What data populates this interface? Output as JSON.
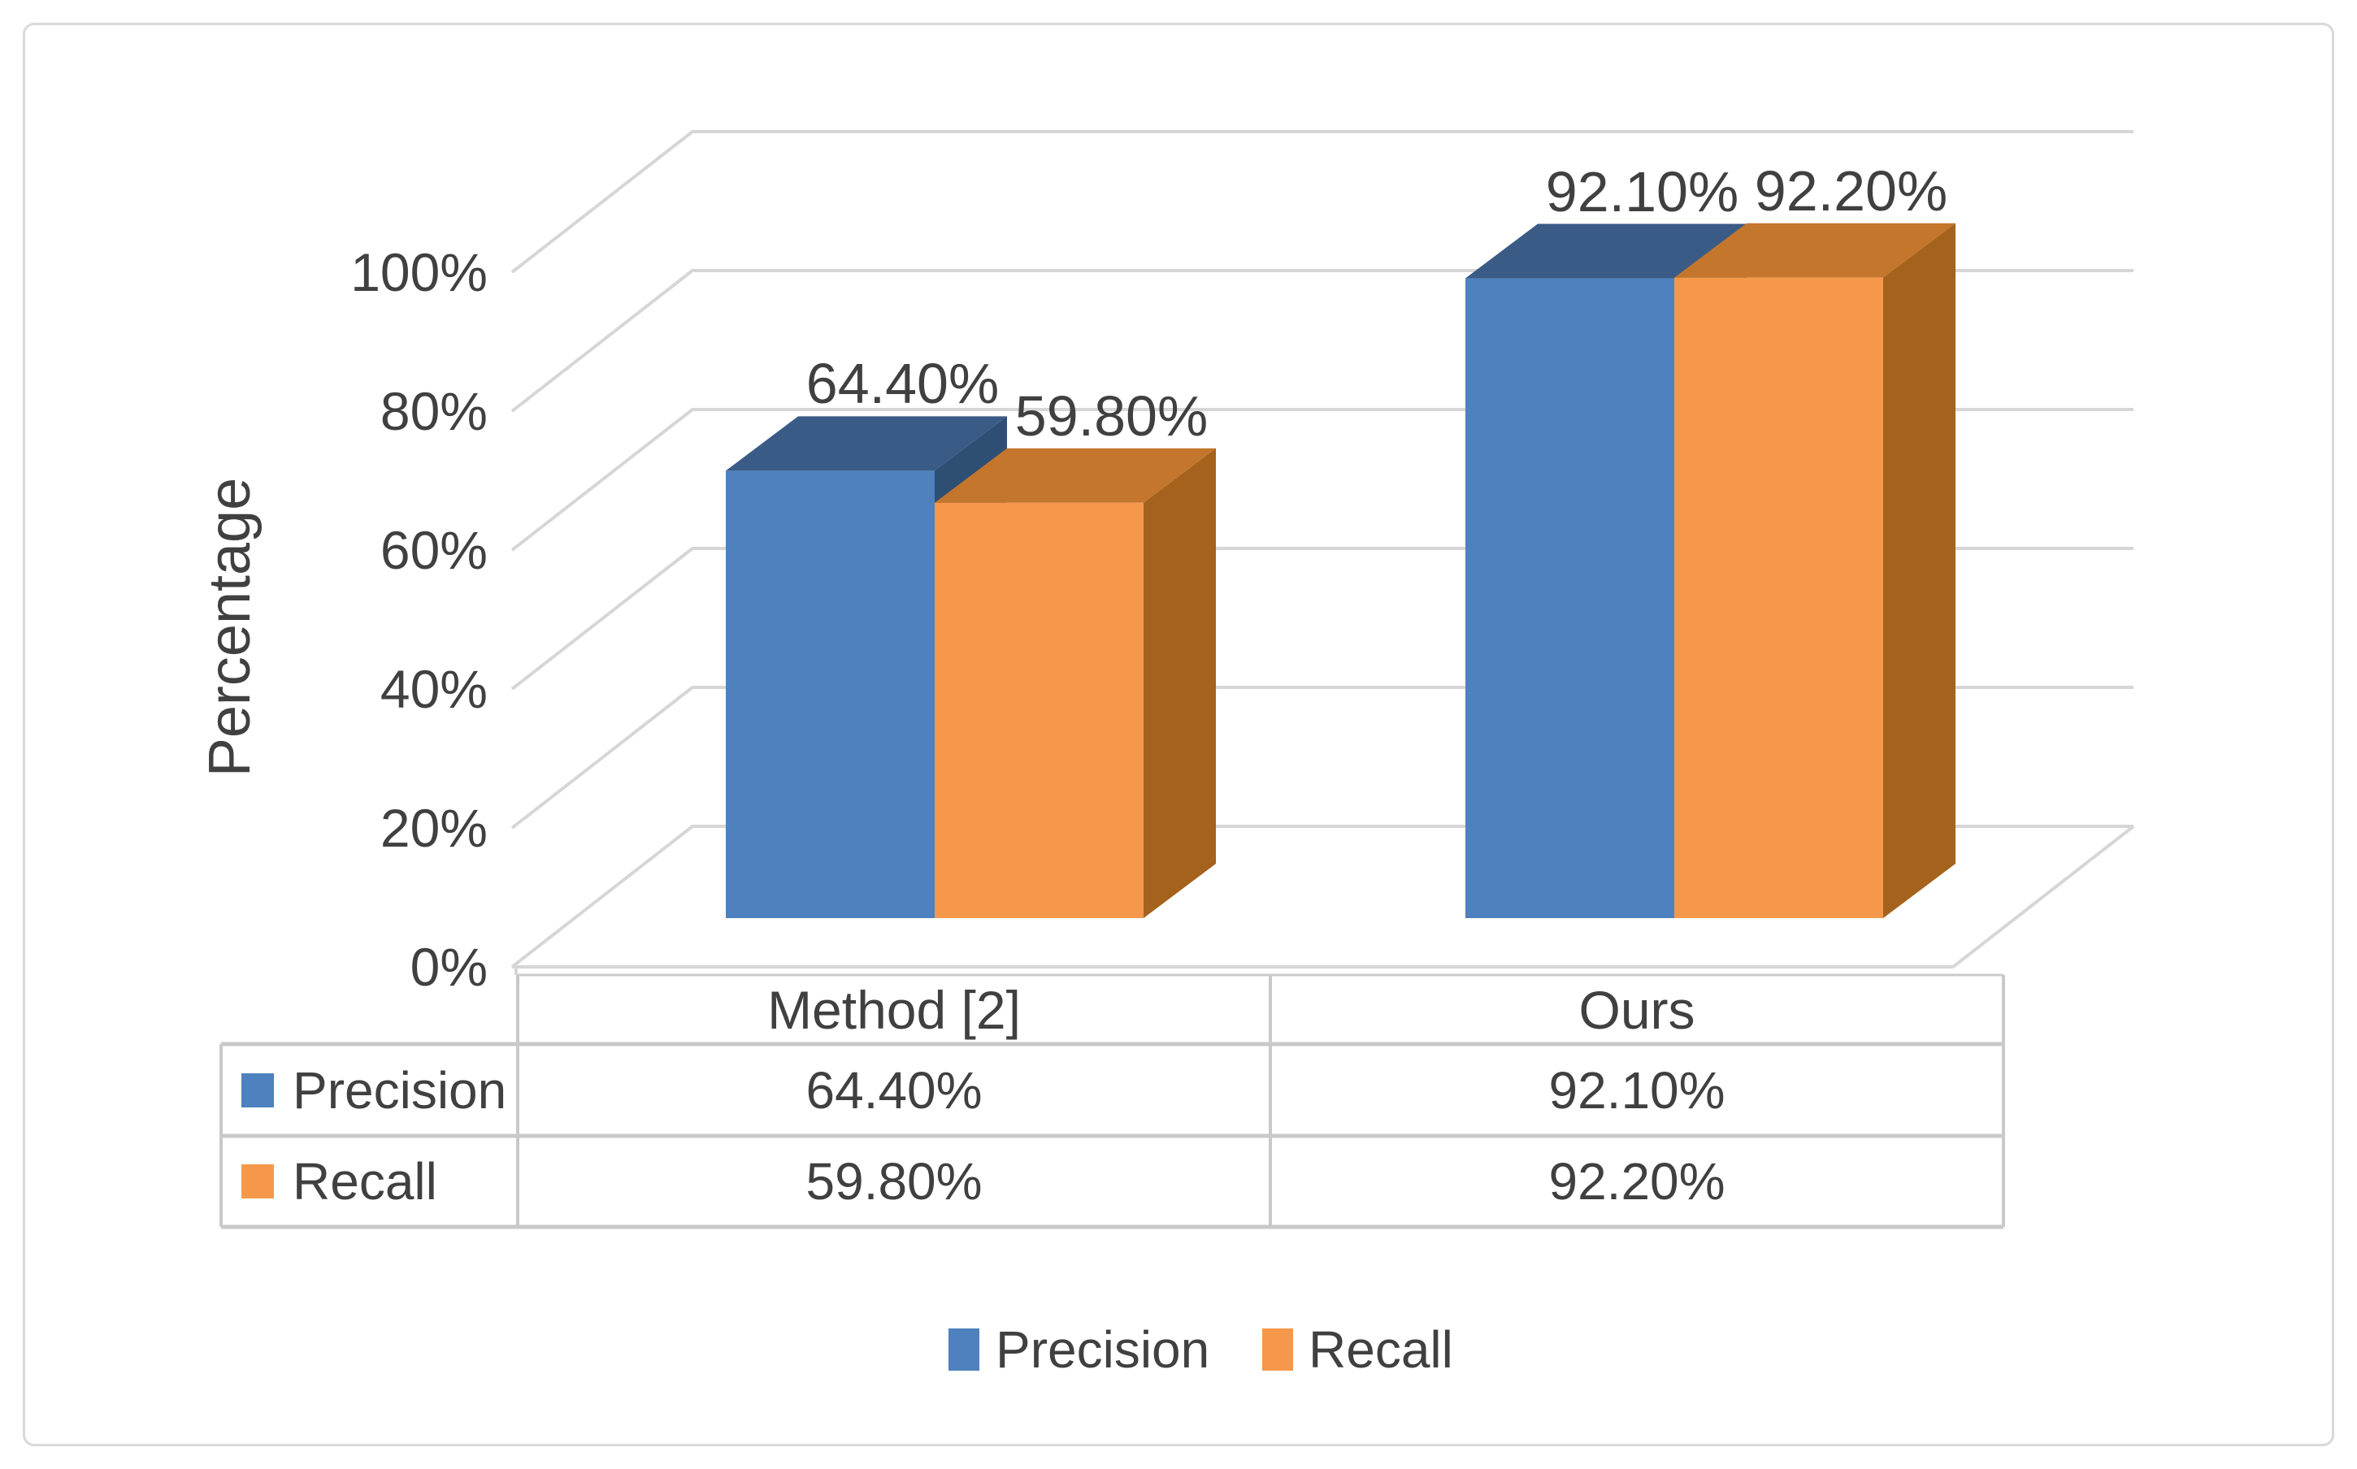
{
  "chart_data": {
    "type": "bar",
    "variant": "3d-clustered-column",
    "title": "",
    "xlabel": "",
    "ylabel": "Percentage",
    "categories": [
      "Method [2]",
      "Ours"
    ],
    "series": [
      {
        "name": "Precision",
        "values": [
          64.4,
          92.1
        ],
        "value_labels": [
          "64.40%",
          "92.10%"
        ],
        "color": "#4E81BD",
        "color_top": "#3A5B86",
        "color_side": "#2F4E74"
      },
      {
        "name": "Recall",
        "values": [
          59.8,
          92.2
        ],
        "value_labels": [
          "59.80%",
          "92.20%"
        ],
        "color": "#F6984B",
        "color_top": "#C3762C",
        "color_side": "#A5621D"
      }
    ],
    "y_ticks": [
      "0%",
      "20%",
      "40%",
      "60%",
      "80%",
      "100%"
    ],
    "y_tick_values": [
      0,
      20,
      40,
      60,
      80,
      100
    ],
    "ylim": [
      0,
      100
    ],
    "grid": true,
    "legend_position": "bottom",
    "data_table": {
      "shown": true,
      "column_headers": [
        "Method [2]",
        "Ours"
      ],
      "rows": [
        {
          "header": "Precision",
          "cells": [
            "64.40%",
            "92.10%"
          ]
        },
        {
          "header": "Recall",
          "cells": [
            "59.80%",
            "92.20%"
          ]
        }
      ]
    }
  },
  "colors": {
    "text": "#404040",
    "gridline": "#d6d6d6",
    "table_border": "#c9c9c9",
    "frame_border": "#d9d9d9",
    "background": "#ffffff",
    "precision": "#4E81BD",
    "recall": "#F6984B"
  },
  "legend": {
    "items": [
      {
        "label": "Precision",
        "color": "#4E81BD"
      },
      {
        "label": "Recall",
        "color": "#F6984B"
      }
    ]
  }
}
